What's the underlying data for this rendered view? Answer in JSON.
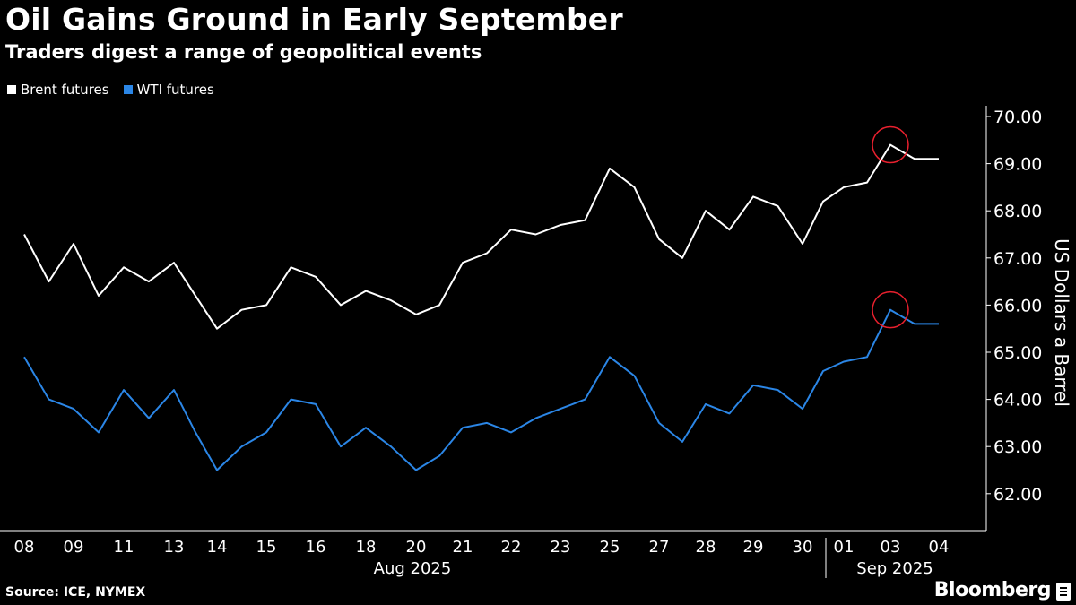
{
  "title": "Oil Gains Ground in Early September",
  "subtitle": "Traders digest a range of geopolitical events",
  "source": "Source: ICE, NYMEX",
  "brand": "Bloomberg",
  "colors": {
    "background": "#000000",
    "brent": "#ffffff",
    "wti": "#2b86e6",
    "highlight": "#e8202e",
    "axis": "#ffffff"
  },
  "legend_placement": "top-left",
  "chart_data": {
    "type": "line",
    "title": "Oil Gains Ground in Early September",
    "subtitle": "Traders digest a range of geopolitical events",
    "xlabel": "",
    "ylabel": "US Dollars a Barrel",
    "ylim": [
      61.4,
      70.2
    ],
    "yticks": [
      62.0,
      63.0,
      64.0,
      65.0,
      66.0,
      67.0,
      68.0,
      69.0,
      70.0
    ],
    "ytick_labels": [
      "62.00",
      "63.00",
      "64.00",
      "65.00",
      "66.00",
      "67.00",
      "68.00",
      "69.00",
      "70.00"
    ],
    "grid": false,
    "x_ticks": [
      "08",
      "09",
      "11",
      "13",
      "14",
      "15",
      "16",
      "18",
      "20",
      "21",
      "22",
      "23",
      "25",
      "27",
      "28",
      "29",
      "30",
      "01",
      "03",
      "04"
    ],
    "x_groups": [
      {
        "label": "Aug 2025",
        "ticks": [
          "08",
          "09",
          "11",
          "13",
          "14",
          "15",
          "16",
          "18",
          "20",
          "21",
          "22",
          "23",
          "25",
          "27",
          "28",
          "29",
          "30"
        ]
      },
      {
        "label": "Sep 2025",
        "ticks": [
          "01",
          "03",
          "04"
        ]
      }
    ],
    "x": [
      "08",
      "08",
      "09",
      "09",
      "11",
      "11",
      "13",
      "13",
      "14",
      "14",
      "15",
      "15",
      "16",
      "16",
      "18",
      "18",
      "20",
      "20",
      "21",
      "21",
      "22",
      "22",
      "23",
      "23",
      "25",
      "25",
      "27",
      "27",
      "28",
      "28",
      "29",
      "29",
      "30",
      "30",
      "01",
      "01",
      "03",
      "03",
      "04"
    ],
    "x_position": [
      0,
      0.5,
      1,
      1.5,
      2,
      2.5,
      3,
      3.5,
      4,
      4.5,
      5,
      5.5,
      6,
      6.5,
      7,
      7.5,
      8,
      8.5,
      9,
      9.5,
      10,
      10.5,
      11,
      11.5,
      12,
      12.5,
      13,
      13.5,
      14,
      14.5,
      15,
      15.5,
      16,
      16.5,
      17,
      17.5,
      18,
      18.5,
      19
    ],
    "series": [
      {
        "name": "Brent futures",
        "values": [
          67.5,
          66.5,
          67.3,
          66.2,
          66.8,
          66.5,
          66.9,
          66.2,
          65.5,
          65.9,
          66.0,
          66.8,
          66.6,
          66.0,
          66.3,
          66.1,
          65.8,
          66.0,
          66.9,
          67.1,
          67.6,
          67.5,
          67.7,
          67.8,
          68.9,
          68.5,
          67.4,
          67.0,
          68.0,
          67.6,
          68.3,
          68.1,
          67.3,
          68.2,
          68.5,
          68.6,
          69.4,
          69.1,
          69.1
        ]
      },
      {
        "name": "WTI futures",
        "values": [
          64.9,
          64.0,
          63.8,
          63.3,
          64.2,
          63.6,
          64.2,
          63.3,
          62.5,
          63.0,
          63.3,
          64.0,
          63.9,
          63.0,
          63.4,
          63.0,
          62.5,
          62.8,
          63.4,
          63.5,
          63.3,
          63.6,
          63.8,
          64.0,
          64.9,
          64.5,
          63.5,
          63.1,
          63.9,
          63.7,
          64.3,
          64.2,
          63.8,
          64.6,
          64.8,
          64.9,
          65.9,
          65.6,
          65.6
        ]
      }
    ],
    "annotations": [
      {
        "type": "circle",
        "series": "Brent futures",
        "x": "03",
        "y": 69.4
      },
      {
        "type": "circle",
        "series": "WTI futures",
        "x": "03",
        "y": 65.9
      }
    ]
  }
}
